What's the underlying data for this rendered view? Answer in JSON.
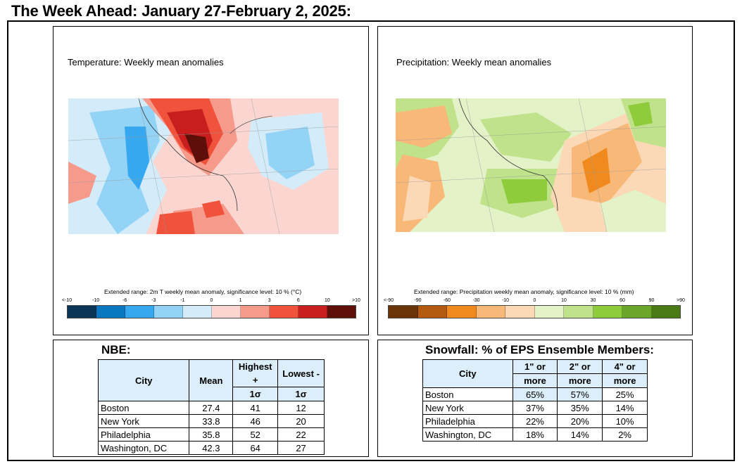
{
  "title": "The Week Ahead: January 27-February 2, 2025:",
  "temperature_panel": {
    "label": "Temperature: Weekly mean anomalies",
    "caption": "Extended range: 2m T weekly mean anomaly, significance level: 10 % (°C)",
    "ticks": [
      "<-10",
      "-10",
      "-6",
      "-3",
      "-1",
      "0",
      "1",
      "3",
      "6",
      "10",
      ">10"
    ],
    "colors": [
      "#0b3556",
      "#0a78c0",
      "#36a8f0",
      "#93d3f5",
      "#d4ecfa",
      "#fbd6d0",
      "#f69a8c",
      "#f0523c",
      "#c81e1e",
      "#5e0f0a"
    ]
  },
  "precipitation_panel": {
    "label": "Precipitation: Weekly mean anomalies",
    "caption": "Extended range: Precipitation weekly mean anomaly, significance level: 10 % (mm)",
    "ticks": [
      "<-90",
      "-90",
      "-60",
      "-30",
      "-10",
      "0",
      "10",
      "30",
      "60",
      "90",
      ">90"
    ],
    "colors": [
      "#6b3308",
      "#b35a10",
      "#f08a1e",
      "#f8b878",
      "#fbd8b6",
      "#e4f2c8",
      "#bfe28a",
      "#8fcc3c",
      "#6aa62a",
      "#4a7a14"
    ]
  },
  "nbe": {
    "title": "NBE:",
    "headers": {
      "city": "City",
      "mean": "Mean",
      "high_1": "Highest +",
      "high_2": "1σ",
      "low_1": "Lowest -",
      "low_2": "1σ"
    },
    "rows": [
      {
        "city": "Boston",
        "mean": "27.4",
        "high": "41",
        "low": "12"
      },
      {
        "city": "New York",
        "mean": "33.8",
        "high": "46",
        "low": "20"
      },
      {
        "city": "Philadelphia",
        "mean": "35.8",
        "high": "52",
        "low": "22"
      },
      {
        "city": "Washington, DC",
        "mean": "42.3",
        "high": "64",
        "low": "27"
      }
    ]
  },
  "snowfall": {
    "title": "Snowfall: % of EPS Ensemble Members:",
    "headers": {
      "city": "City",
      "one_1": "1\" or",
      "one_2": "more",
      "two_1": "2\" or",
      "two_2": "more",
      "four_1": "4\" or",
      "four_2": "more"
    },
    "rows": [
      {
        "city": "Boston",
        "one": "65%",
        "two": "57%",
        "four": "25%"
      },
      {
        "city": "New York",
        "one": "37%",
        "two": "35%",
        "four": "14%"
      },
      {
        "city": "Philadelphia",
        "one": "22%",
        "two": "20%",
        "four": "10%"
      },
      {
        "city": "Washington, DC",
        "one": "18%",
        "two": "14%",
        "four": "2%"
      }
    ]
  }
}
